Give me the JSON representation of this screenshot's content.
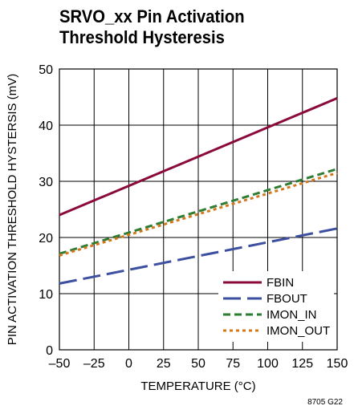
{
  "title_line1": "SRVO_xx Pin Activation",
  "title_line2": "Threshold Hysteresis",
  "figure_id": "8705 G22",
  "chart_data": {
    "type": "line",
    "xlabel": "TEMPERATURE (°C)",
    "ylabel": "PIN ACTIVATION THRESHOLD HYSTERSIS (mV)",
    "xlim": [
      -50,
      150
    ],
    "ylim": [
      0,
      50
    ],
    "xticks": [
      -50,
      -25,
      0,
      25,
      50,
      75,
      100,
      125,
      150
    ],
    "xtick_labels": [
      "–50",
      "–25",
      "0",
      "25",
      "50",
      "75",
      "100",
      "125",
      "150"
    ],
    "yticks": [
      0,
      10,
      20,
      30,
      40,
      50
    ],
    "grid": true,
    "legend_position": "bottom-right",
    "series": [
      {
        "name": "FBIN",
        "color": "#8b0a3c",
        "dash": "solid",
        "x": [
          -50,
          150
        ],
        "y": [
          24,
          44.8
        ]
      },
      {
        "name": "FBOUT",
        "color": "#3d4fa0",
        "dash": "long-dash",
        "x": [
          -50,
          150
        ],
        "y": [
          11.8,
          21.6
        ]
      },
      {
        "name": "IMON_IN",
        "color": "#2e7d32",
        "dash": "dash",
        "x": [
          -50,
          150
        ],
        "y": [
          17.1,
          32.2
        ]
      },
      {
        "name": "IMON_OUT",
        "color": "#d4781e",
        "dash": "dot",
        "x": [
          -50,
          150
        ],
        "y": [
          16.8,
          31.5
        ]
      }
    ]
  }
}
